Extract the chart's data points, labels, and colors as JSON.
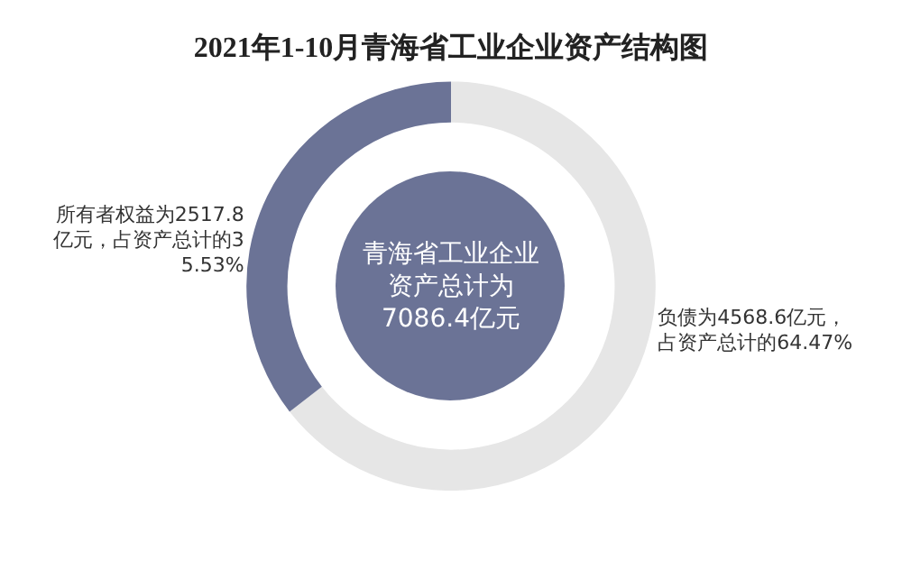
{
  "chart_data": {
    "type": "donut",
    "title": "2021年1-10月青海省工业企业资产结构图",
    "categories": [
      null,
      null
    ],
    "values": [
      4568.6,
      2517.8
    ],
    "colors": [
      "#e6e6e6",
      "#6b7396"
    ],
    "value_labels": [
      "负债为4568.6亿元，占资产总计的64.47%",
      "所有者权益为2517.8亿元，占资产总计的35.53%"
    ],
    "annotations": [
      "青海省工业企业资产总计为7086.4亿元"
    ]
  }
}
